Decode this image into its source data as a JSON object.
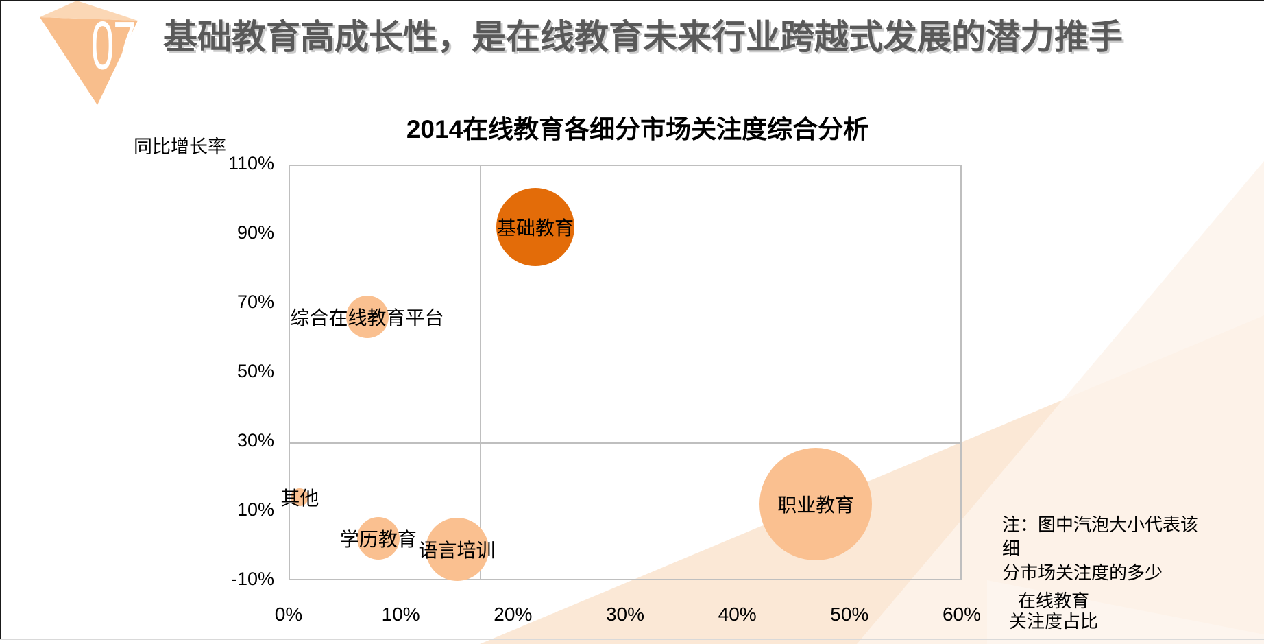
{
  "slide": {
    "badge_number": "07",
    "title": "基础教育高成长性，是在线教育未来行业跨越式发展的潜力推手",
    "note": "注：图中汽泡大小代表该细\n分市场关注度的多少"
  },
  "colors": {
    "accent_dark_orange": "#E36C09",
    "accent_light_orange": "#FAC090",
    "title_gray": "#595959",
    "axis_gray": "#BFBFBF",
    "badge_peach": "#F8BE8C",
    "badge_peach_light": "#FBD7B5",
    "background_peach": "#FBE8D6",
    "background_peach_lighter": "#FDF3EB"
  },
  "chart_data": {
    "type": "bubble",
    "title": "2014在线教育各细分市场关注度综合分析",
    "xlabel": "在线教育\n关注度占比",
    "ylabel": "同比增长率",
    "xlim": [
      0,
      60
    ],
    "ylim": [
      -10,
      110
    ],
    "x_ticks": [
      0,
      10,
      20,
      30,
      40,
      50,
      60
    ],
    "y_ticks": [
      110,
      90,
      70,
      50,
      30,
      10,
      -10
    ],
    "x_tick_suffix": "%",
    "y_tick_suffix": "%",
    "grid": "quadrant-dividers-only",
    "quadrant_divider": {
      "x_percent": 17,
      "y_percent": 30
    },
    "bubble_size_meaning": "图中汽泡大小代表该细分市场关注度的多少",
    "points": [
      {
        "label": "基础教育",
        "x": 22,
        "y": 92,
        "radius_px": 57,
        "color": "#E36C09"
      },
      {
        "label": "综合在线教育平台",
        "x": 7,
        "y": 66,
        "radius_px": 31,
        "color": "#FAC090"
      },
      {
        "label": "其他",
        "x": 1,
        "y": 14,
        "radius_px": 13,
        "color": "#FAC090"
      },
      {
        "label": "学历教育",
        "x": 8,
        "y": 2,
        "radius_px": 31,
        "color": "#FAC090"
      },
      {
        "label": "语言培训",
        "x": 15,
        "y": -1,
        "radius_px": 46,
        "color": "#FAC090"
      },
      {
        "label": "职业教育",
        "x": 47,
        "y": 12,
        "radius_px": 82,
        "color": "#FAC090"
      }
    ]
  }
}
